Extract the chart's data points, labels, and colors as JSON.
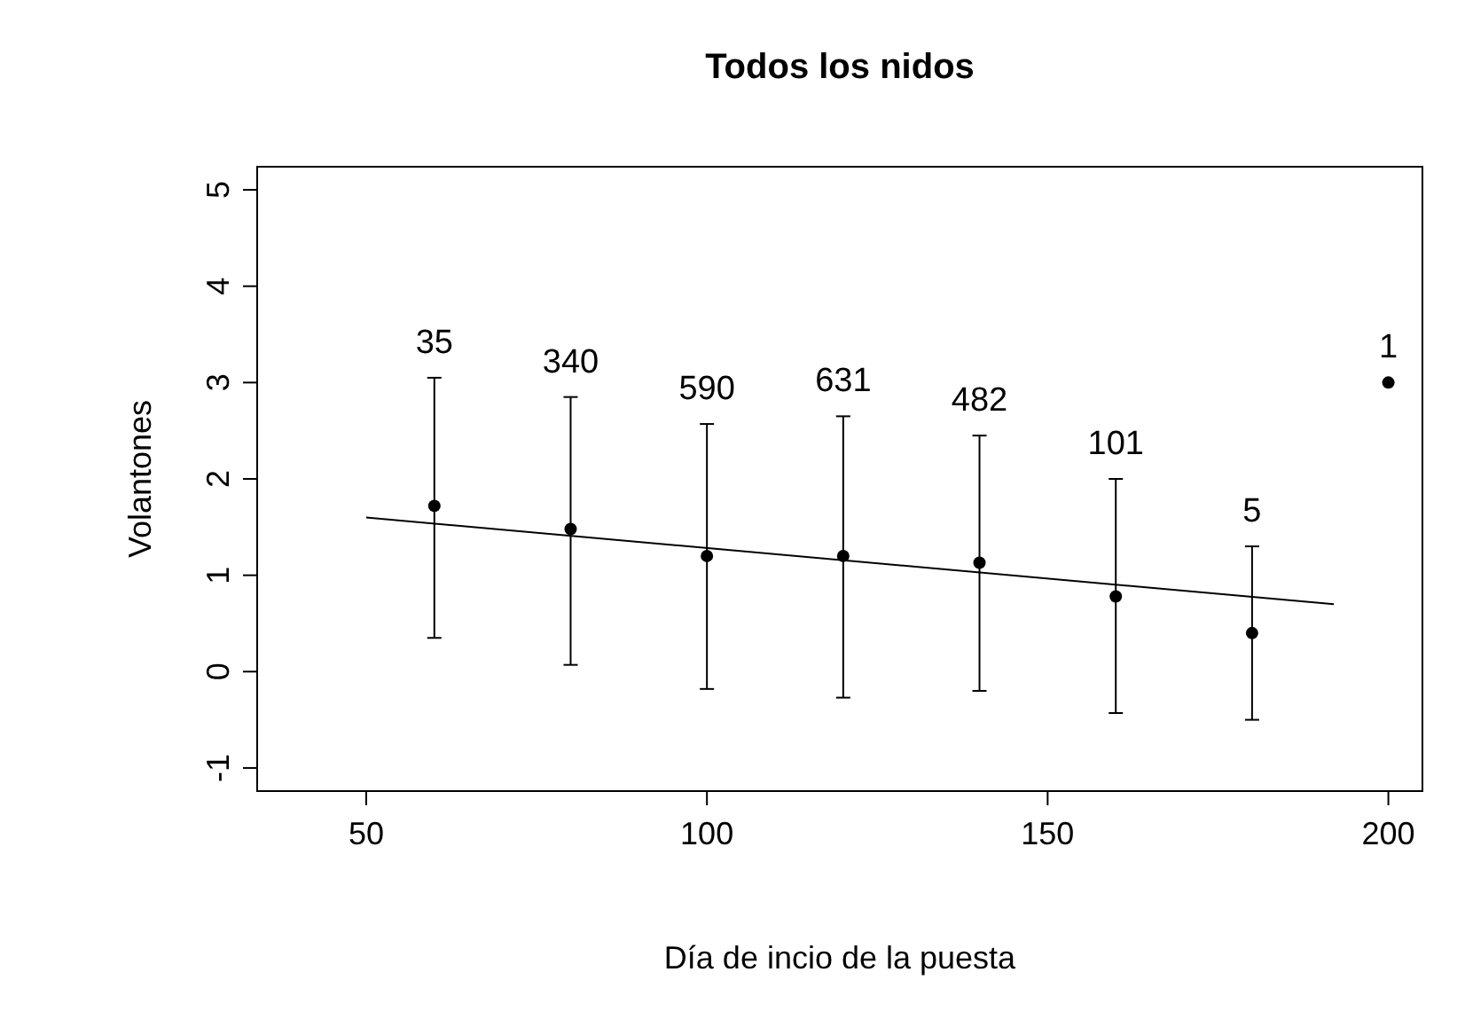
{
  "chart_data": {
    "type": "scatter",
    "title": "Todos los nidos",
    "xlabel": "Día de incio de la puesta",
    "ylabel": "Volantones",
    "xlim": [
      34,
      205
    ],
    "xticks": [
      50,
      100,
      150,
      200
    ],
    "ylim": [
      -1.24,
      5.24
    ],
    "yticks": [
      -1,
      0,
      1,
      2,
      3,
      4,
      5
    ],
    "grid": false,
    "series": [
      {
        "color": "#000000",
        "marker": "circle",
        "x": [
          60,
          80,
          100,
          120,
          140,
          160,
          180,
          200
        ],
        "values": [
          1.72,
          1.48,
          1.2,
          1.2,
          1.13,
          0.78,
          0.4,
          3.0
        ],
        "errors": [
          [
            0.35,
            3.05
          ],
          [
            0.07,
            2.85
          ],
          [
            -0.18,
            2.57
          ],
          [
            -0.27,
            2.65
          ],
          [
            -0.2,
            2.45
          ],
          [
            -0.43,
            2.0
          ],
          [
            -0.5,
            1.3
          ],
          null
        ]
      },
      {
        "type": "line",
        "color": "#000000",
        "x": [
          50,
          192
        ],
        "values": [
          1.6,
          0.7
        ]
      }
    ],
    "annotations": [
      "35",
      "340",
      "590",
      "631",
      "482",
      "101",
      "5",
      "1"
    ]
  }
}
